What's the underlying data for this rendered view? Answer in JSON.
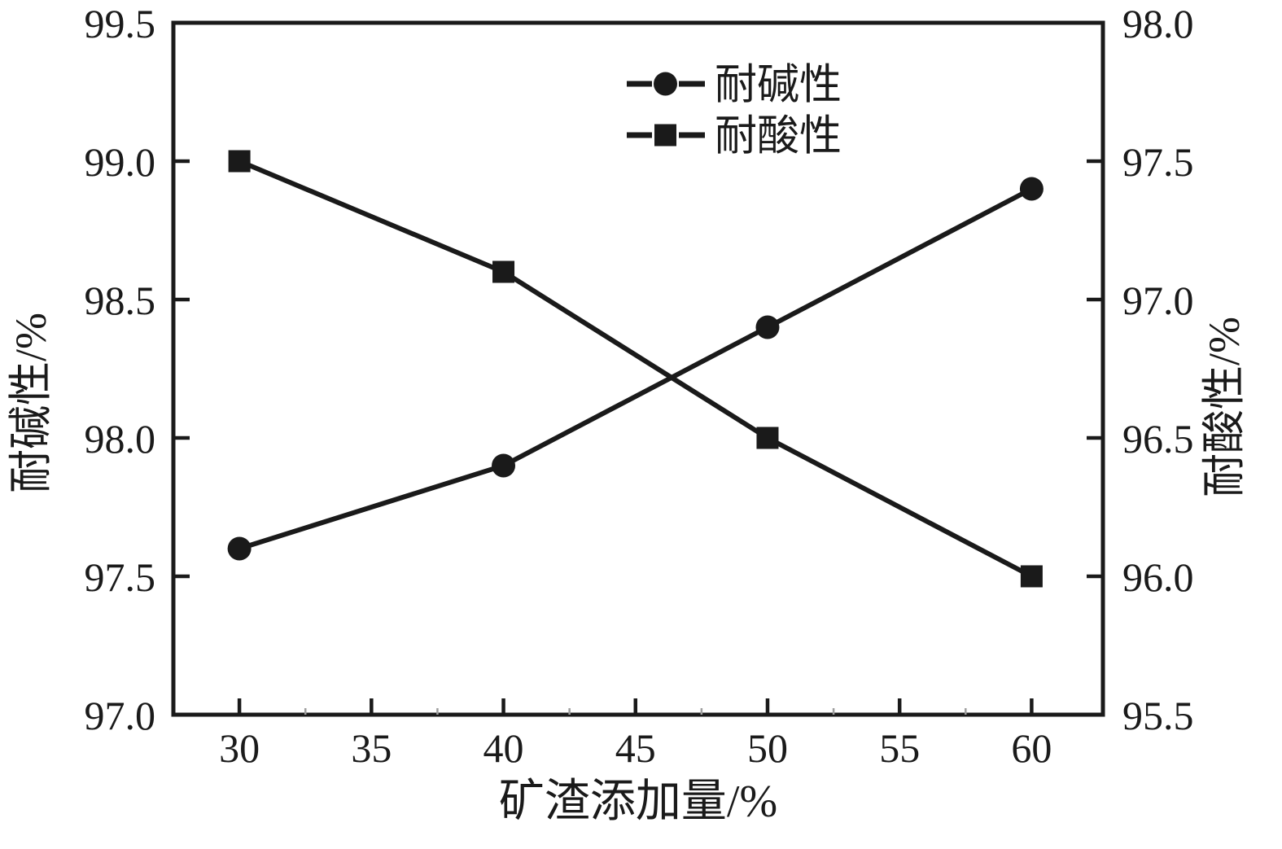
{
  "figure": {
    "background": "#ffffff",
    "ink_color": "#1a1a1a"
  },
  "chart_data": {
    "type": "line",
    "title": "",
    "x": [
      30,
      40,
      50,
      60
    ],
    "series": [
      {
        "name": "耐碱性",
        "axis": "left",
        "marker": "circle",
        "values": [
          97.6,
          97.9,
          98.4,
          98.9
        ]
      },
      {
        "name": "耐酸性",
        "axis": "right",
        "marker": "square",
        "values": [
          97.5,
          97.1,
          96.5,
          96.0
        ]
      }
    ],
    "x_axis": {
      "label": "矿渣添加量/%",
      "range": [
        27.5,
        62.7
      ],
      "ticks": [
        30,
        35,
        40,
        45,
        50,
        55,
        60
      ],
      "tick_labels": [
        "30",
        "35",
        "40",
        "45",
        "50",
        "55",
        "60"
      ],
      "minor_ticks": [
        32.5,
        37.5,
        42.5,
        47.5,
        52.5,
        57.5
      ]
    },
    "y_left": {
      "label": "耐碱性/%",
      "range": [
        97.0,
        99.5
      ],
      "ticks": [
        97.0,
        97.5,
        98.0,
        98.5,
        99.0,
        99.5
      ],
      "tick_labels": [
        "97.0",
        "97.5",
        "98.0",
        "98.5",
        "99.0",
        "99.5"
      ]
    },
    "y_right": {
      "label": "耐酸性/%",
      "range": [
        95.5,
        98.0
      ],
      "ticks": [
        95.5,
        96.0,
        96.5,
        97.0,
        97.5,
        98.0
      ],
      "tick_labels": [
        "95.5",
        "96.0",
        "96.5",
        "97.0",
        "97.5",
        "98.0"
      ]
    },
    "legend": {
      "position": "inside-top-center",
      "entries": [
        "耐碱性",
        "耐酸性"
      ]
    },
    "grid": false
  }
}
